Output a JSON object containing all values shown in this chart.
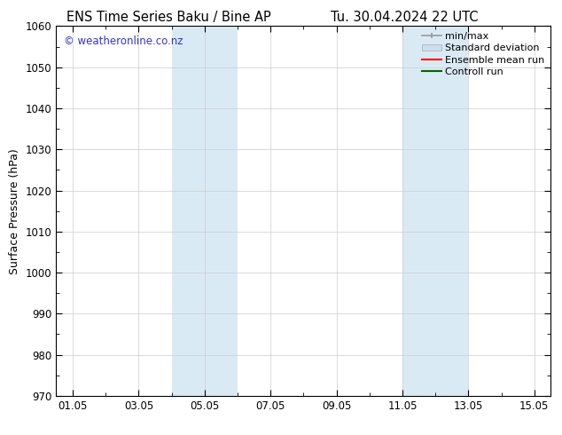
{
  "title_left": "ENS Time Series Baku / Bine AP",
  "title_right": "Tu. 30.04.2024 22 UTC",
  "ylabel": "Surface Pressure (hPa)",
  "ylim": [
    970,
    1060
  ],
  "yticks": [
    970,
    980,
    990,
    1000,
    1010,
    1020,
    1030,
    1040,
    1050,
    1060
  ],
  "xtick_labels": [
    "01.05",
    "03.05",
    "05.05",
    "07.05",
    "09.05",
    "11.05",
    "13.05",
    "15.05"
  ],
  "xtick_positions": [
    1,
    3,
    5,
    7,
    9,
    11,
    13,
    15
  ],
  "xlim": [
    0.5,
    15.5
  ],
  "shaded_regions": [
    {
      "x_start": 4.0,
      "x_end": 6.0,
      "color": "#daeaf5"
    },
    {
      "x_start": 11.0,
      "x_end": 13.0,
      "color": "#daeaf5"
    }
  ],
  "watermark_text": "© weatheronline.co.nz",
  "watermark_color": "#3333cc",
  "legend_items": [
    {
      "label": "min/max",
      "color": "#999999",
      "type": "minmax"
    },
    {
      "label": "Standard deviation",
      "color": "#ccddee",
      "type": "patch"
    },
    {
      "label": "Ensemble mean run",
      "color": "#ff0000",
      "type": "line",
      "linewidth": 1.5
    },
    {
      "label": "Controll run",
      "color": "#006600",
      "type": "line",
      "linewidth": 1.5
    }
  ],
  "background_color": "#ffffff",
  "plot_bg_color": "#ffffff",
  "title_fontsize": 10.5,
  "tick_fontsize": 8.5,
  "ylabel_fontsize": 9,
  "watermark_fontsize": 8.5,
  "legend_fontsize": 8
}
